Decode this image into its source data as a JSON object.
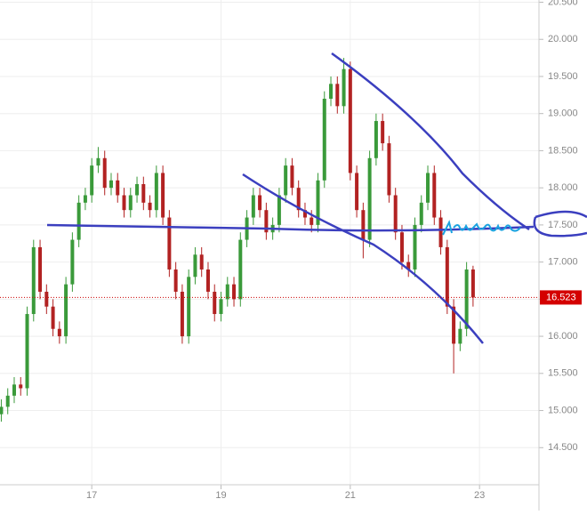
{
  "chart_data": {
    "type": "candlestick",
    "x": [
      15.6,
      15.7,
      15.8,
      15.9,
      16.0,
      16.1,
      16.2,
      16.3,
      16.4,
      16.5,
      16.6,
      16.7,
      16.8,
      16.9,
      17.0,
      17.1,
      17.2,
      17.3,
      17.4,
      17.5,
      17.6,
      17.7,
      17.8,
      17.9,
      18.0,
      18.1,
      18.2,
      18.3,
      18.4,
      18.5,
      18.6,
      18.7,
      18.8,
      18.9,
      19.0,
      19.1,
      19.2,
      19.3,
      19.4,
      19.5,
      19.6,
      19.7,
      19.8,
      19.9,
      20.0,
      20.1,
      20.2,
      20.3,
      20.4,
      20.5,
      20.6,
      20.7,
      20.8,
      20.9,
      21.0,
      21.1,
      21.2,
      21.3,
      21.4,
      21.5,
      21.6,
      21.7,
      21.8,
      21.9,
      22.0,
      22.1,
      22.2,
      22.3,
      22.4,
      22.5,
      22.6,
      22.7,
      22.8,
      22.9
    ],
    "open": [
      14.95,
      15.05,
      15.2,
      15.35,
      15.3,
      16.3,
      17.2,
      16.6,
      16.4,
      16.1,
      16.0,
      16.7,
      17.3,
      17.8,
      17.9,
      18.3,
      18.4,
      18.0,
      18.1,
      17.9,
      17.7,
      17.9,
      18.05,
      17.8,
      17.7,
      18.2,
      17.6,
      16.9,
      16.6,
      16.0,
      16.8,
      17.1,
      16.9,
      16.6,
      16.3,
      16.5,
      16.7,
      16.5,
      17.3,
      17.6,
      17.9,
      17.7,
      17.4,
      17.5,
      17.9,
      18.3,
      18.0,
      17.7,
      17.6,
      17.5,
      18.1,
      19.2,
      19.4,
      19.1,
      19.6,
      18.2,
      17.7,
      17.3,
      18.4,
      18.9,
      18.6,
      17.9,
      17.4,
      17.0,
      16.9,
      17.5,
      17.8,
      18.2,
      17.6,
      17.2,
      16.4,
      15.9,
      16.1,
      16.9
    ],
    "high": [
      15.15,
      15.3,
      15.45,
      15.45,
      16.4,
      17.3,
      17.3,
      16.7,
      16.5,
      16.2,
      16.8,
      17.4,
      17.9,
      18.0,
      18.4,
      18.55,
      18.5,
      18.2,
      18.2,
      18.0,
      18.0,
      18.15,
      18.15,
      17.9,
      18.3,
      18.3,
      17.7,
      17.0,
      16.7,
      16.9,
      17.2,
      17.2,
      17.0,
      16.7,
      16.6,
      16.8,
      16.8,
      17.4,
      17.7,
      18.0,
      18.0,
      17.8,
      17.6,
      18.0,
      18.4,
      18.4,
      18.1,
      17.8,
      17.7,
      18.2,
      19.3,
      19.5,
      19.5,
      19.75,
      19.7,
      18.3,
      17.8,
      18.5,
      19.0,
      19.0,
      18.7,
      18.0,
      17.5,
      17.1,
      17.6,
      17.9,
      18.3,
      18.3,
      17.7,
      17.3,
      16.5,
      16.2,
      17.0,
      16.95
    ],
    "low": [
      14.85,
      14.95,
      15.1,
      15.2,
      15.2,
      16.2,
      16.5,
      16.3,
      16.0,
      15.9,
      15.9,
      16.6,
      17.2,
      17.7,
      17.8,
      18.2,
      17.9,
      17.9,
      17.8,
      17.6,
      17.6,
      17.8,
      17.7,
      17.6,
      17.6,
      17.5,
      16.8,
      16.5,
      15.9,
      15.9,
      16.7,
      16.8,
      16.5,
      16.2,
      16.2,
      16.4,
      16.4,
      16.4,
      17.2,
      17.5,
      17.6,
      17.3,
      17.3,
      17.4,
      17.8,
      17.9,
      17.6,
      17.5,
      17.4,
      17.4,
      18.0,
      19.1,
      19.0,
      19.0,
      18.1,
      17.6,
      17.05,
      17.2,
      18.3,
      18.5,
      17.8,
      17.3,
      16.9,
      16.8,
      16.8,
      17.4,
      17.7,
      17.5,
      17.1,
      16.3,
      15.5,
      15.8,
      16.0,
      16.4
    ],
    "close": [
      15.05,
      15.2,
      15.35,
      15.3,
      16.3,
      17.2,
      16.6,
      16.4,
      16.1,
      16.0,
      16.7,
      17.3,
      17.8,
      17.9,
      18.3,
      18.4,
      18.0,
      18.1,
      17.9,
      17.7,
      17.9,
      18.05,
      17.8,
      17.7,
      18.2,
      17.6,
      16.9,
      16.6,
      16.0,
      16.8,
      17.1,
      16.9,
      16.6,
      16.3,
      16.5,
      16.7,
      16.5,
      17.3,
      17.6,
      17.9,
      17.7,
      17.4,
      17.5,
      17.9,
      18.3,
      18.0,
      17.7,
      17.6,
      17.5,
      18.1,
      19.2,
      19.4,
      19.1,
      19.6,
      18.2,
      17.7,
      17.3,
      18.4,
      18.9,
      18.6,
      17.9,
      17.4,
      17.0,
      16.9,
      17.5,
      17.8,
      18.2,
      17.6,
      17.2,
      16.4,
      15.9,
      16.1,
      16.9,
      16.523
    ],
    "up_color": "#3a9a3a",
    "down_color": "#b22222",
    "xlim": [
      15.58,
      23.92
    ],
    "xticks": [
      17,
      19,
      21,
      23
    ],
    "ylim": [
      14.0,
      20.53
    ],
    "yticks": [
      {
        "value": 14.5,
        "label": "14.500"
      },
      {
        "value": 15.0,
        "label": "15.000"
      },
      {
        "value": 15.5,
        "label": "15.500"
      },
      {
        "value": 16.0,
        "label": "16.000"
      },
      {
        "value": 16.5,
        "label": "16.500"
      },
      {
        "value": 17.0,
        "label": "17.000"
      },
      {
        "value": 17.5,
        "label": "17.500"
      },
      {
        "value": 18.0,
        "label": "18.000"
      },
      {
        "value": 18.5,
        "label": "18.500"
      },
      {
        "value": 19.0,
        "label": "19.000"
      },
      {
        "value": 19.5,
        "label": "19.500"
      },
      {
        "value": 20.0,
        "label": "20.000"
      },
      {
        "value": 20.5,
        "label": "20.500"
      }
    ],
    "grid": true,
    "current_price": {
      "value": 16.523,
      "label": "16.523"
    }
  }
}
